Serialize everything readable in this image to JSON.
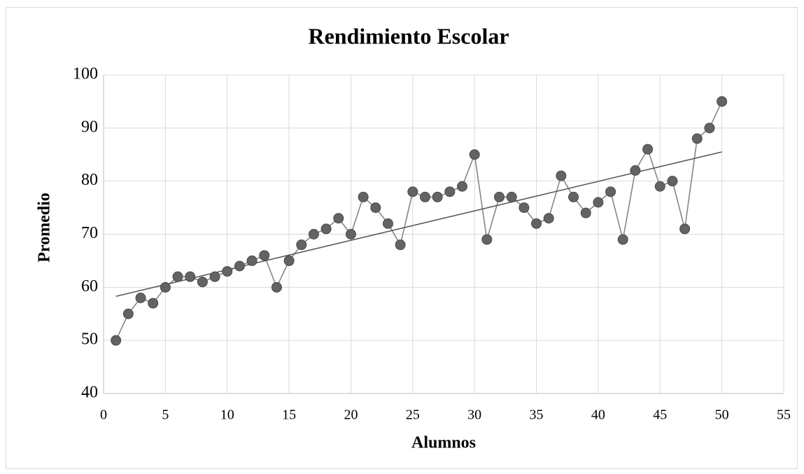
{
  "chart_data": {
    "type": "line",
    "title": "Rendimiento Escolar",
    "x_label": "Alumnos",
    "y_label": "Promedio",
    "x": [
      1,
      2,
      3,
      4,
      5,
      6,
      7,
      8,
      9,
      10,
      11,
      12,
      13,
      14,
      15,
      16,
      17,
      18,
      19,
      20,
      21,
      22,
      23,
      24,
      25,
      26,
      27,
      28,
      29,
      30,
      31,
      32,
      33,
      34,
      35,
      36,
      37,
      38,
      39,
      40,
      41,
      42,
      43,
      44,
      45,
      46,
      47,
      48,
      49,
      50
    ],
    "values": [
      50,
      55,
      58,
      57,
      60,
      62,
      62,
      61,
      62,
      63,
      64,
      65,
      66,
      60,
      65,
      68,
      70,
      71,
      73,
      70,
      77,
      75,
      72,
      68,
      78,
      77,
      77,
      78,
      79,
      85,
      69,
      77,
      77,
      75,
      72,
      73,
      81,
      77,
      74,
      76,
      78,
      69,
      82,
      86,
      79,
      80,
      71,
      88,
      90,
      95
    ],
    "color": "#7f7f7f",
    "marker_color": "#636363",
    "trendline": {
      "x": [
        1,
        50
      ],
      "values": [
        58.3,
        85.5
      ],
      "color": "#595959"
    },
    "xlim": [
      0,
      55
    ],
    "xticks": [
      0,
      5,
      10,
      15,
      20,
      25,
      30,
      35,
      40,
      45,
      50,
      55
    ],
    "ylim": [
      40,
      100
    ],
    "yticks": [
      40,
      50,
      60,
      70,
      80,
      90,
      100
    ],
    "grid": true
  }
}
